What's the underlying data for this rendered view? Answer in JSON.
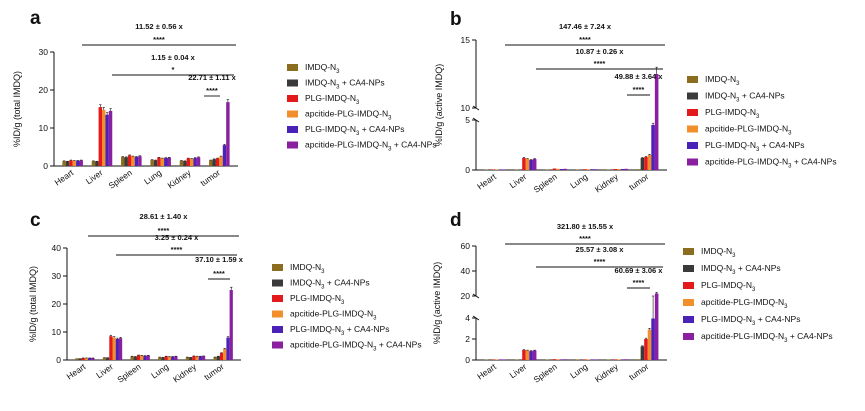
{
  "figure": {
    "legend_series": [
      {
        "name": "IMDQ-N3",
        "base": "IMDQ-N",
        "sub": "3",
        "tail": "",
        "color": "#8a6d1e"
      },
      {
        "name": "IMDQ-N3 + CA4-NPs",
        "base": "IMDQ-N",
        "sub": "3",
        "tail": " + CA4-NPs",
        "color": "#3a3a3a"
      },
      {
        "name": "PLG-IMDQ-N3",
        "base": "PLG-IMDQ-N",
        "sub": "3",
        "tail": "",
        "color": "#e31a1c"
      },
      {
        "name": "apcitide-PLG-IMDQ-N3",
        "base": "apcitide-PLG-IMDQ-N",
        "sub": "3",
        "tail": "",
        "color": "#f28e2b"
      },
      {
        "name": "PLG-IMDQ-N3 + CA4-NPs",
        "base": "PLG-IMDQ-N",
        "sub": "3",
        "tail": " + CA4-NPs",
        "color": "#4b22b8"
      },
      {
        "name": "apcitide-PLG-IMDQ-N3 + CA4-NPs",
        "base": "apcitide-PLG-IMDQ-N",
        "sub": "3",
        "tail": " + CA4-NPs",
        "color": "#8a1fa0"
      }
    ]
  },
  "chart_data": [
    {
      "panel": "a",
      "type": "bar",
      "ylabel": "%ID/g (total IMDQ)",
      "categories": [
        "Heart",
        "Liver",
        "Spleen",
        "Lung",
        "Kidney",
        "tumor"
      ],
      "ylim": [
        0,
        30
      ],
      "yticks": [
        0,
        10,
        20,
        30
      ],
      "series": [
        {
          "name": "IMDQ-N3",
          "values": [
            1.3,
            1.3,
            2.4,
            1.6,
            1.4,
            1.5
          ]
        },
        {
          "name": "IMDQ-N3 + CA4-NPs",
          "values": [
            1.2,
            1.2,
            2.3,
            1.5,
            1.3,
            1.8
          ]
        },
        {
          "name": "PLG-IMDQ-N3",
          "values": [
            1.5,
            15.5,
            2.8,
            2.2,
            2.0,
            2.0
          ]
        },
        {
          "name": "apcitide-PLG-IMDQ-N3",
          "values": [
            1.4,
            14.8,
            2.5,
            2.0,
            1.9,
            2.5
          ]
        },
        {
          "name": "PLG-IMDQ-N3 + CA4-NPs",
          "values": [
            1.4,
            13.5,
            2.4,
            2.1,
            2.1,
            5.5
          ]
        },
        {
          "name": "apcitide-PLG-IMDQ-N3 + CA4-NPs",
          "values": [
            1.5,
            14.5,
            2.6,
            2.2,
            2.3,
            16.8
          ]
        }
      ],
      "annotations": [
        {
          "text": "11.52 ± 0.56 x",
          "stars": "****"
        },
        {
          "text": "1.15 ± 0.04 x",
          "stars": "*"
        },
        {
          "text": "22.71 ± 1.11 x",
          "stars": "****"
        }
      ]
    },
    {
      "panel": "b",
      "type": "bar",
      "ylabel": "%ID/g (active IMDQ)",
      "categories": [
        "Heart",
        "Liver",
        "Spleen",
        "Lung",
        "Kidney",
        "tumor"
      ],
      "axis_break": {
        "lower": [
          0,
          5
        ],
        "upper": [
          10,
          15
        ]
      },
      "yticks": [
        0,
        5,
        10,
        15
      ],
      "series": [
        {
          "name": "IMDQ-N3",
          "values": [
            0.02,
            0.05,
            0.03,
            0.03,
            0.03,
            0.08
          ]
        },
        {
          "name": "IMDQ-N3 + CA4-NPs",
          "values": [
            0.02,
            0.05,
            0.03,
            0.03,
            0.03,
            1.2
          ]
        },
        {
          "name": "PLG-IMDQ-N3",
          "values": [
            0.05,
            1.2,
            0.15,
            0.08,
            0.1,
            1.3
          ]
        },
        {
          "name": "apcitide-PLG-IMDQ-N3",
          "values": [
            0.05,
            1.1,
            0.12,
            0.08,
            0.1,
            1.5
          ]
        },
        {
          "name": "PLG-IMDQ-N3 + CA4-NPs",
          "values": [
            0.05,
            1.0,
            0.1,
            0.08,
            0.1,
            4.5
          ]
        },
        {
          "name": "apcitide-PLG-IMDQ-N3 + CA4-NPs",
          "values": [
            0.05,
            1.1,
            0.12,
            0.08,
            0.12,
            12.5
          ]
        }
      ],
      "annotations": [
        {
          "text": "147.46 ± 7.24 x",
          "stars": "****"
        },
        {
          "text": "10.87 ± 0.26 x",
          "stars": "****"
        },
        {
          "text": "49.88 ± 3.64 x",
          "stars": "****"
        }
      ]
    },
    {
      "panel": "c",
      "type": "bar",
      "ylabel": "%ID/g (total IMDQ)",
      "categories": [
        "Heart",
        "Liver",
        "Spleen",
        "Lung",
        "Kidney",
        "tumor"
      ],
      "ylim": [
        0,
        40
      ],
      "yticks": [
        0,
        10,
        20,
        30,
        40
      ],
      "series": [
        {
          "name": "IMDQ-N3",
          "values": [
            0.6,
            0.8,
            1.3,
            1.0,
            1.0,
            1.0
          ]
        },
        {
          "name": "IMDQ-N3 + CA4-NPs",
          "values": [
            0.6,
            0.8,
            1.2,
            0.9,
            0.9,
            1.3
          ]
        },
        {
          "name": "PLG-IMDQ-N3",
          "values": [
            0.7,
            8.5,
            1.7,
            1.3,
            1.4,
            2.5
          ]
        },
        {
          "name": "apcitide-PLG-IMDQ-N3",
          "values": [
            0.7,
            8.0,
            1.6,
            1.2,
            1.3,
            4.0
          ]
        },
        {
          "name": "PLG-IMDQ-N3 + CA4-NPs",
          "values": [
            0.7,
            7.5,
            1.5,
            1.2,
            1.3,
            8.0
          ]
        },
        {
          "name": "apcitide-PLG-IMDQ-N3 + CA4-NPs",
          "values": [
            0.7,
            7.8,
            1.6,
            1.3,
            1.4,
            25.0
          ]
        }
      ],
      "annotations": [
        {
          "text": "28.61 ± 1.40 x",
          "stars": "****"
        },
        {
          "text": "3.25 ± 0.24 x",
          "stars": "****"
        },
        {
          "text": "37.10 ± 1.59 x",
          "stars": "****"
        }
      ]
    },
    {
      "panel": "d",
      "type": "bar",
      "ylabel": "%ID/g (active IMDQ)",
      "categories": [
        "Heart",
        "Liver",
        "Spleen",
        "Lung",
        "Kidney",
        "tumor"
      ],
      "axis_break": {
        "lower": [
          0,
          4
        ],
        "upper": [
          20,
          60
        ]
      },
      "yticks": [
        0,
        2,
        4,
        20,
        40,
        60
      ],
      "series": [
        {
          "name": "IMDQ-N3",
          "values": [
            0.01,
            0.03,
            0.02,
            0.02,
            0.02,
            0.07
          ]
        },
        {
          "name": "IMDQ-N3 + CA4-NPs",
          "values": [
            0.01,
            0.03,
            0.02,
            0.02,
            0.02,
            1.3
          ]
        },
        {
          "name": "PLG-IMDQ-N3",
          "values": [
            0.02,
            0.95,
            0.08,
            0.05,
            0.06,
            2.0
          ]
        },
        {
          "name": "apcitide-PLG-IMDQ-N3",
          "values": [
            0.02,
            0.9,
            0.07,
            0.05,
            0.06,
            2.9
          ]
        },
        {
          "name": "PLG-IMDQ-N3 + CA4-NPs",
          "values": [
            0.02,
            0.85,
            0.06,
            0.05,
            0.06,
            3.95
          ]
        },
        {
          "name": "apcitide-PLG-IMDQ-N3 + CA4-NPs",
          "values": [
            0.02,
            0.9,
            0.07,
            0.05,
            0.07,
            22.0
          ]
        }
      ],
      "annotations": [
        {
          "text": "321.80 ± 15.55 x",
          "stars": "****"
        },
        {
          "text": "25.57 ± 3.08 x",
          "stars": "****"
        },
        {
          "text": "60.69 ± 3.06 x",
          "stars": "****"
        }
      ]
    }
  ]
}
